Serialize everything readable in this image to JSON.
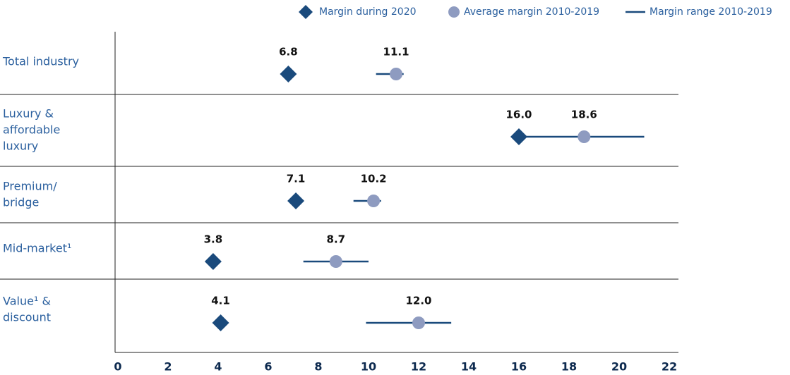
{
  "chart_data": {
    "type": "dot-range",
    "categories": [
      [
        "Total industry"
      ],
      [
        "Luxury &",
        "affordable",
        "luxury"
      ],
      [
        "Premium/",
        "bridge"
      ],
      [
        "Mid-market¹"
      ],
      [
        "Value¹ &",
        "discount"
      ]
    ],
    "series": [
      {
        "name": "Margin during 2020",
        "color": "#1a4a7c",
        "values": [
          6.8,
          16.0,
          7.1,
          3.8,
          4.1
        ],
        "value_labels": [
          "6.8",
          "16.0",
          "7.1",
          "3.8",
          "4.1"
        ]
      },
      {
        "name": "Average margin 2010-2019",
        "color": "#8e9bc0",
        "values": [
          11.1,
          18.6,
          10.2,
          8.7,
          12.0
        ],
        "value_labels": [
          "11.1",
          "18.6",
          "10.2",
          "8.7",
          "12.0"
        ]
      },
      {
        "name": "Margin range 2010-2019",
        "color": "#1a4a7c",
        "values": [
          [
            10.3,
            11.4
          ],
          [
            15.9,
            21.0
          ],
          [
            9.4,
            10.5
          ],
          [
            7.4,
            10.0
          ],
          [
            9.9,
            13.3
          ]
        ]
      }
    ],
    "xlim": [
      0,
      22
    ],
    "xticks": [
      0,
      2,
      4,
      6,
      8,
      10,
      12,
      14,
      16,
      18,
      20,
      22
    ]
  }
}
